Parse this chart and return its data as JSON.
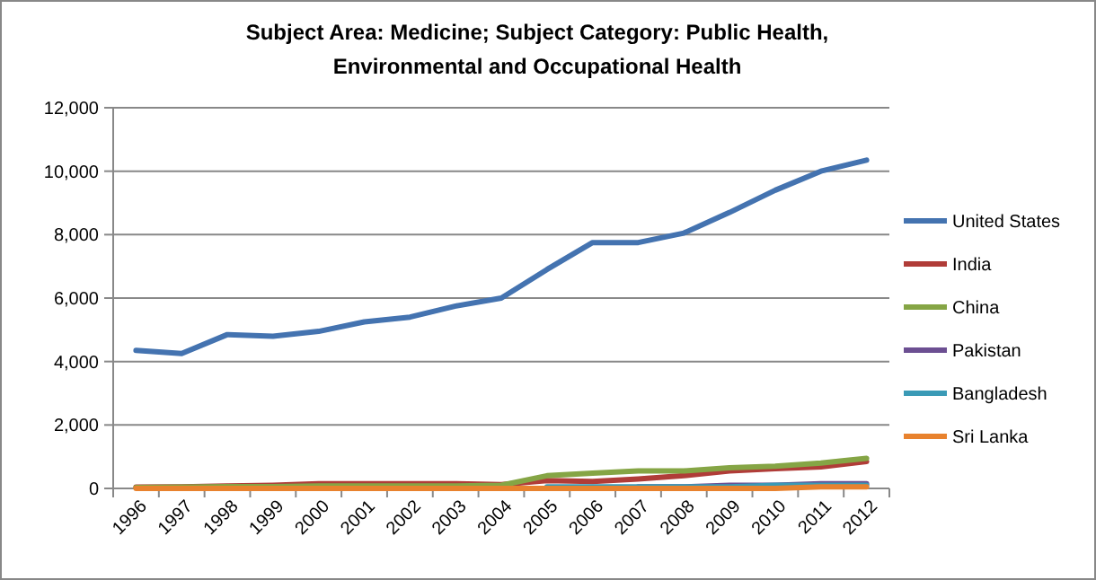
{
  "chart_data": {
    "type": "line",
    "title": "Subject Area: Medicine; Subject Category: Public Health, Environmental and Occupational Health",
    "categories": [
      "1996",
      "1997",
      "1998",
      "1999",
      "2000",
      "2001",
      "2002",
      "2003",
      "2004",
      "2005",
      "2006",
      "2007",
      "2008",
      "2009",
      "2010",
      "2011",
      "2012"
    ],
    "series": [
      {
        "name": "United States",
        "color": "#4473b0",
        "values": [
          4350,
          4250,
          4850,
          4800,
          4950,
          5250,
          5400,
          5750,
          6000,
          6900,
          7750,
          7750,
          8050,
          8700,
          9400,
          10000,
          10350
        ]
      },
      {
        "name": "India",
        "color": "#b03c38",
        "values": [
          40,
          50,
          80,
          100,
          150,
          150,
          150,
          150,
          120,
          250,
          220,
          300,
          400,
          550,
          620,
          680,
          850
        ]
      },
      {
        "name": "China",
        "color": "#85a545",
        "values": [
          30,
          40,
          60,
          60,
          80,
          80,
          80,
          80,
          100,
          400,
          480,
          550,
          550,
          650,
          700,
          800,
          950
        ]
      },
      {
        "name": "Pakistan",
        "color": "#6c4f92",
        "values": [
          null,
          null,
          null,
          null,
          null,
          null,
          null,
          null,
          null,
          null,
          null,
          50,
          50,
          100,
          100,
          150,
          150
        ]
      },
      {
        "name": "Bangladesh",
        "color": "#3a9ab6",
        "values": [
          null,
          null,
          null,
          null,
          null,
          null,
          null,
          null,
          null,
          50,
          50,
          50,
          50,
          50,
          100,
          100,
          100
        ]
      },
      {
        "name": "Sri Lanka",
        "color": "#e8822e",
        "values": [
          0,
          0,
          0,
          0,
          0,
          0,
          0,
          0,
          0,
          0,
          0,
          0,
          0,
          0,
          0,
          50,
          50
        ]
      }
    ],
    "ylim": [
      0,
      12000
    ],
    "yticks": [
      {
        "value": 0,
        "label": "0"
      },
      {
        "value": 2000,
        "label": "2,000"
      },
      {
        "value": 4000,
        "label": "4,000"
      },
      {
        "value": 6000,
        "label": "6,000"
      },
      {
        "value": 8000,
        "label": "8,000"
      },
      {
        "value": 10000,
        "label": "10,000"
      },
      {
        "value": 12000,
        "label": "12,000"
      }
    ],
    "grid": "y",
    "legend": "right",
    "marker": "none",
    "line_style": "solid"
  }
}
